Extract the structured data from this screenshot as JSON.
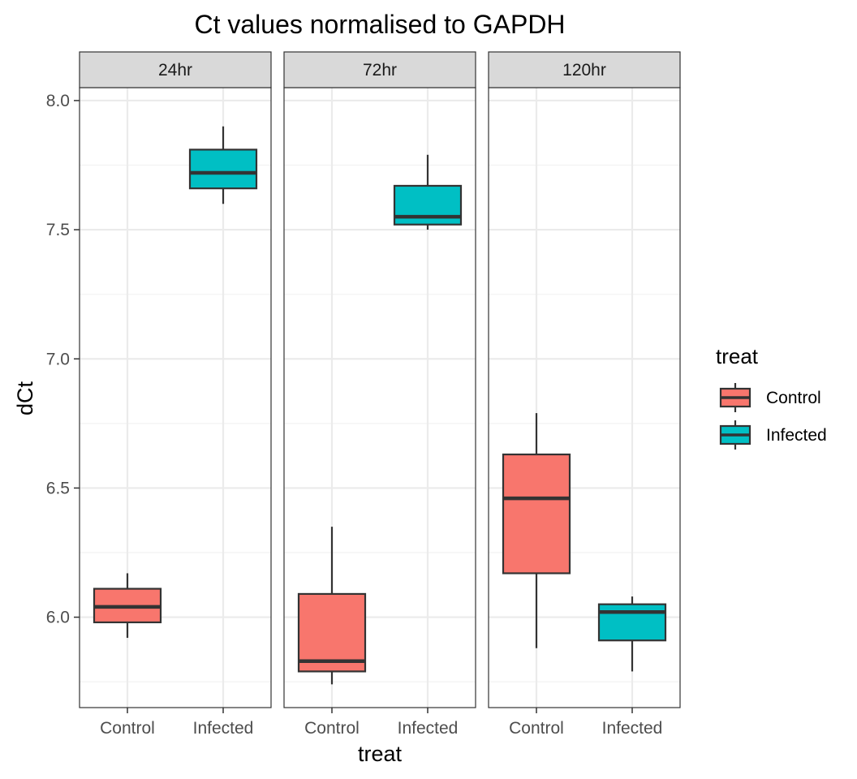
{
  "chart_data": {
    "type": "boxplot",
    "title": "Ct values normalised to GAPDH",
    "xlabel": "treat",
    "ylabel": "dCt",
    "ylim": [
      5.65,
      8.05
    ],
    "yticks": [
      "6.0",
      "6.5",
      "7.0",
      "7.5",
      "8.0"
    ],
    "facets": [
      "24hr",
      "72hr",
      "120hr"
    ],
    "categories": [
      "Control",
      "Infected"
    ],
    "grid": true,
    "legend": {
      "title": "treat",
      "position": "right",
      "entries": [
        {
          "label": "Control",
          "color": "#F8766D"
        },
        {
          "label": "Infected",
          "color": "#00BFC4"
        }
      ]
    },
    "boxes": [
      {
        "facet": "24hr",
        "category": "Control",
        "min": 5.92,
        "q1": 5.98,
        "median": 6.04,
        "q3": 6.11,
        "max": 6.17
      },
      {
        "facet": "24hr",
        "category": "Infected",
        "min": 7.6,
        "q1": 7.66,
        "median": 7.72,
        "q3": 7.81,
        "max": 7.9
      },
      {
        "facet": "72hr",
        "category": "Control",
        "min": 5.74,
        "q1": 5.79,
        "median": 5.83,
        "q3": 6.09,
        "max": 6.35
      },
      {
        "facet": "72hr",
        "category": "Infected",
        "min": 7.5,
        "q1": 7.52,
        "median": 7.55,
        "q3": 7.67,
        "max": 7.79
      },
      {
        "facet": "120hr",
        "category": "Control",
        "min": 5.88,
        "q1": 6.17,
        "median": 6.46,
        "q3": 6.63,
        "max": 6.79
      },
      {
        "facet": "120hr",
        "category": "Infected",
        "min": 5.79,
        "q1": 5.91,
        "median": 6.02,
        "q3": 6.05,
        "max": 6.08
      }
    ]
  }
}
